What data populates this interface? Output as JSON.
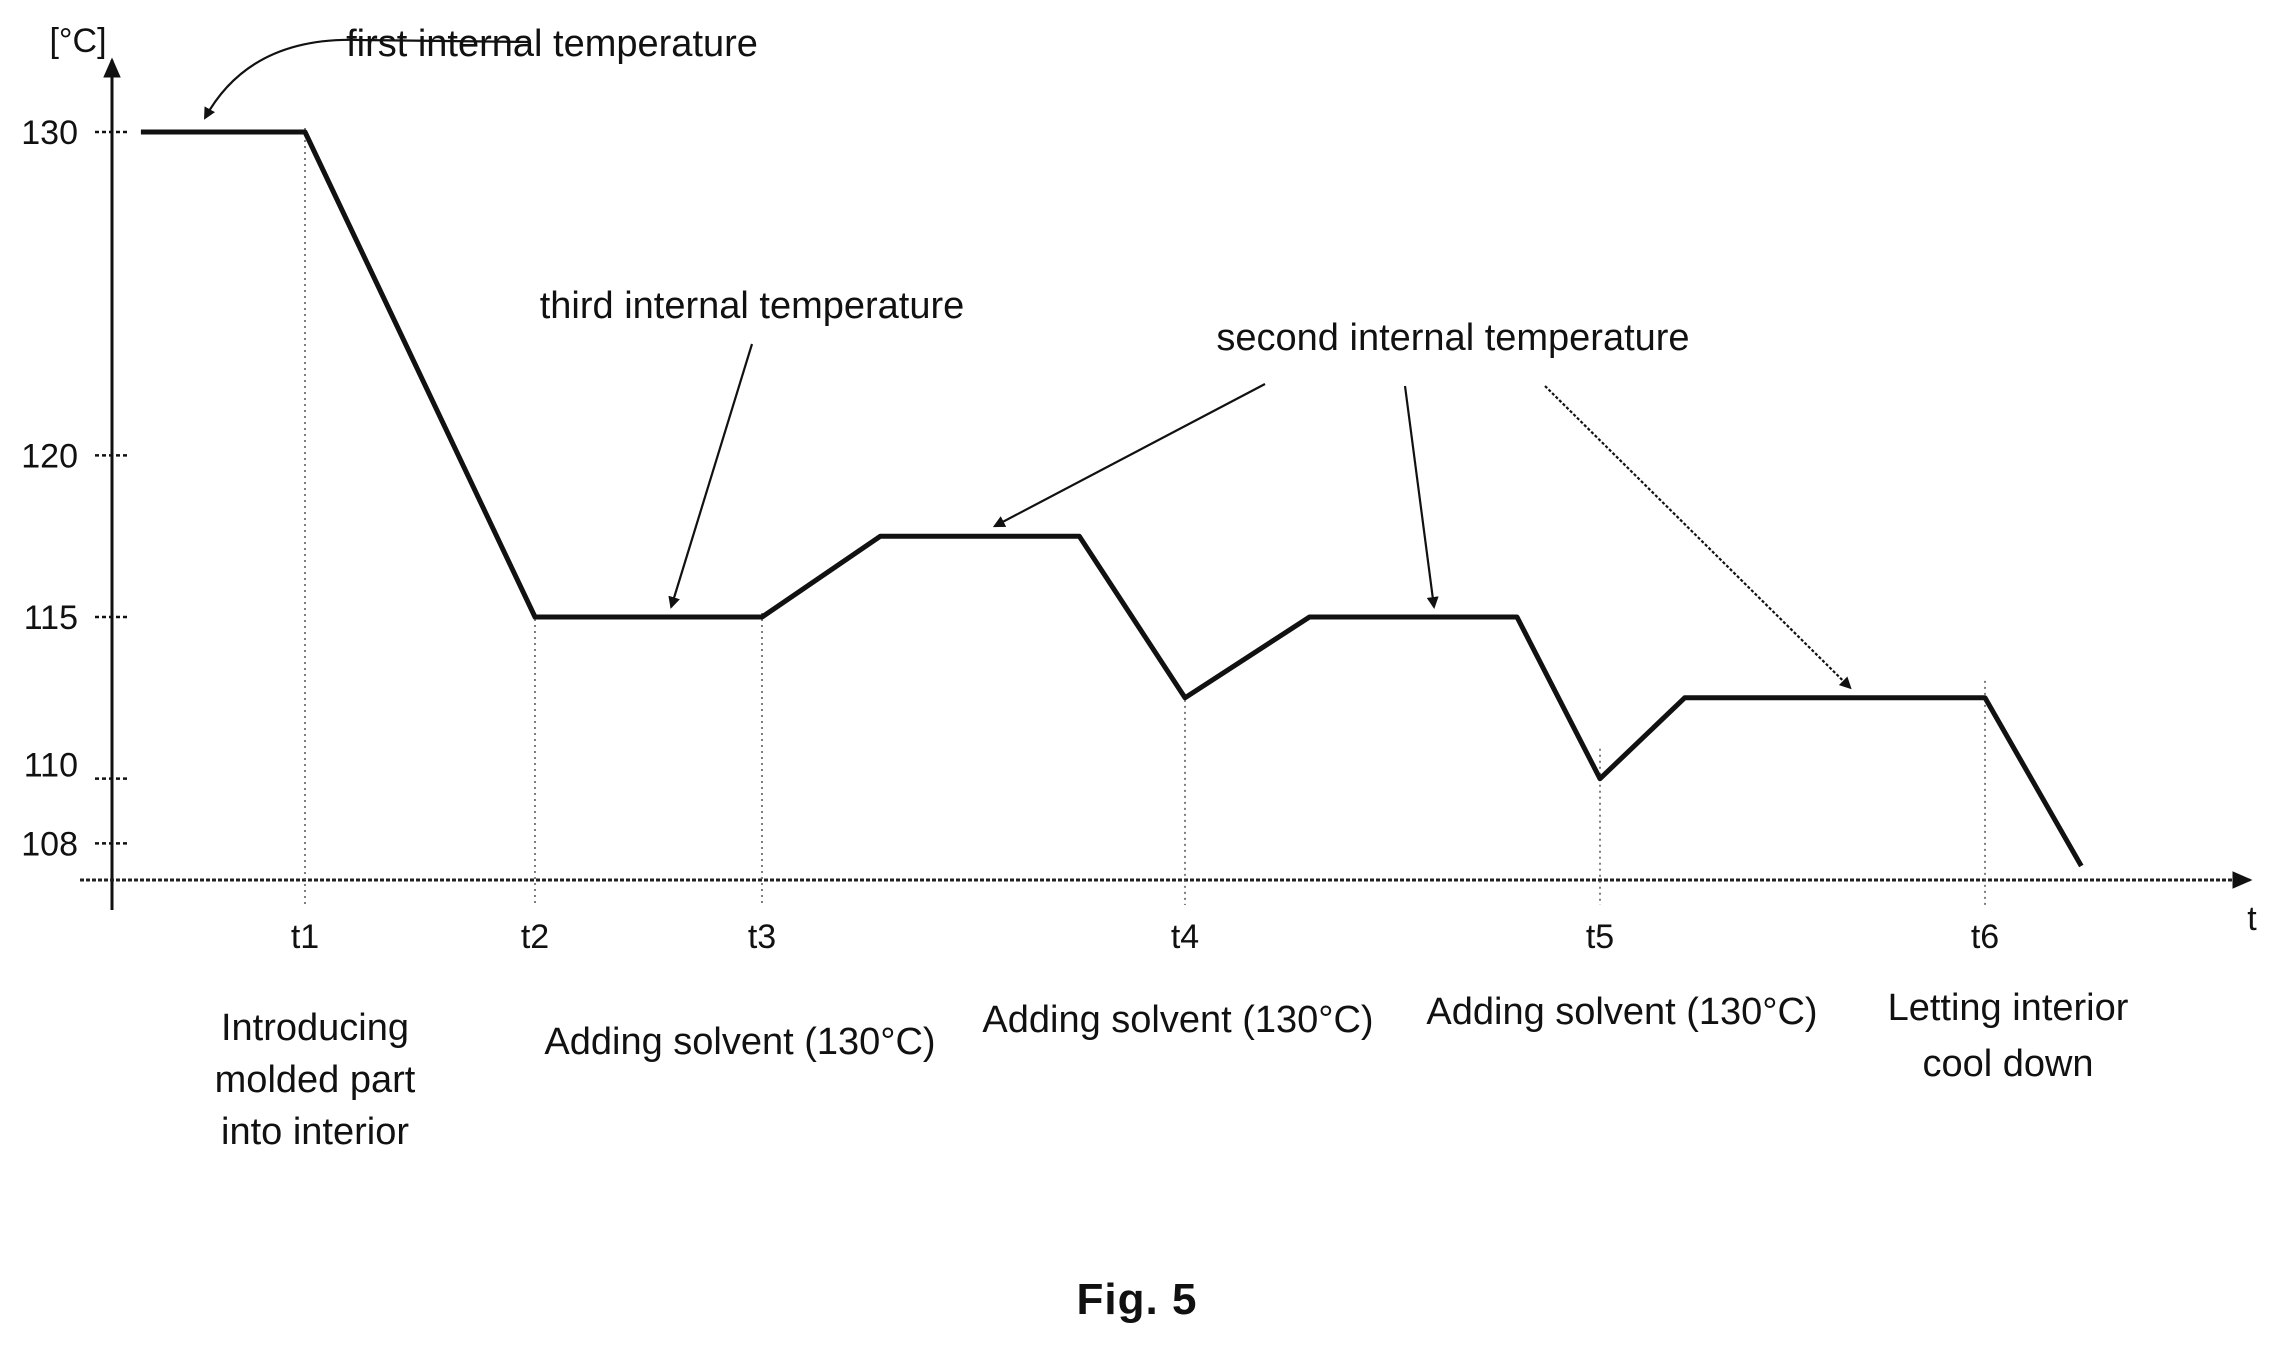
{
  "chart_data": {
    "type": "line",
    "y_unit": "[°C]",
    "x_axis_label": "t",
    "ylim": [
      106,
      130
    ],
    "y_ticks": [
      130,
      120,
      115,
      110,
      108
    ],
    "x_ticks": [
      {
        "label": "t1",
        "t": 1
      },
      {
        "label": "t2",
        "t": 2
      },
      {
        "label": "t3",
        "t": 3
      },
      {
        "label": "t4",
        "t": 4
      },
      {
        "label": "t5",
        "t": 5
      },
      {
        "label": "t6",
        "t": 6
      }
    ],
    "series": [
      {
        "values": [
          {
            "t": 0.15,
            "y": 130.0
          },
          {
            "t": 1.0,
            "y": 130.0
          },
          {
            "t": 2.0,
            "y": 115.0
          },
          {
            "t": 3.0,
            "y": 115.0
          },
          {
            "t": 3.28,
            "y": 117.5
          },
          {
            "t": 3.75,
            "y": 117.5
          },
          {
            "t": 4.0,
            "y": 112.5
          },
          {
            "t": 4.3,
            "y": 115.0
          },
          {
            "t": 4.8,
            "y": 115.0
          },
          {
            "t": 5.0,
            "y": 110.0
          },
          {
            "t": 5.22,
            "y": 112.5
          },
          {
            "t": 6.0,
            "y": 112.5
          },
          {
            "t": 6.25,
            "y": 107.3
          }
        ]
      }
    ],
    "annotations": [
      {
        "text": "first internal temperature",
        "targets": [
          {
            "t": 0.4,
            "y": 130.0
          }
        ]
      },
      {
        "text": "third internal temperature",
        "targets": [
          {
            "t": 2.6,
            "y": 115.0
          }
        ]
      },
      {
        "text": "second internal temperature",
        "targets": [
          {
            "t": 3.55,
            "y": 117.5
          },
          {
            "t": 4.6,
            "y": 115.0
          },
          {
            "t": 5.65,
            "y": 112.5
          }
        ]
      }
    ],
    "phases": [
      {
        "lines": [
          "Introducing",
          "molded part",
          "into interior"
        ]
      },
      {
        "lines": [
          "Adding solvent (130°C)"
        ]
      },
      {
        "lines": [
          "Adding solvent (130°C)"
        ]
      },
      {
        "lines": [
          "Adding solvent (130°C)"
        ]
      },
      {
        "lines": [
          "Letting interior",
          "cool down"
        ]
      }
    ],
    "caption": "Fig. 5"
  }
}
